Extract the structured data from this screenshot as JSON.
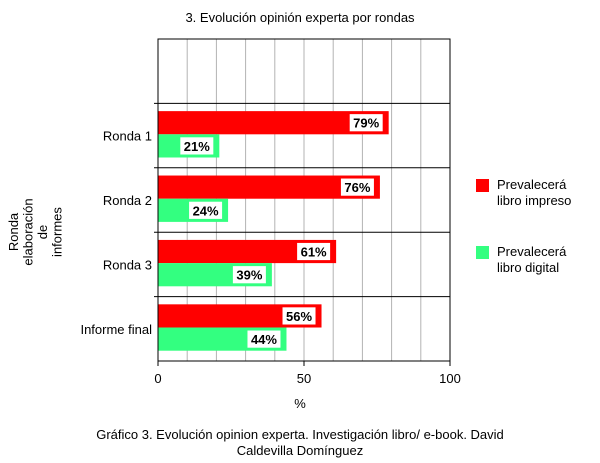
{
  "chart_data": {
    "type": "bar",
    "orientation": "horizontal",
    "title": "3. Evolución opinión experta por rondas",
    "categories": [
      "Ronda 1",
      "Ronda 2",
      "Ronda 3",
      "Informe final"
    ],
    "series": [
      {
        "name": "Prevalecerá libro impreso",
        "values": [
          79,
          76,
          61,
          56
        ],
        "color": "#ff0000"
      },
      {
        "name": "Prevalecerá libro digital",
        "values": [
          21,
          24,
          39,
          44
        ],
        "color": "#33ff80"
      }
    ],
    "data_labels": [
      [
        "79%",
        "76%",
        "61%",
        "56%"
      ],
      [
        "21%",
        "24%",
        "39%",
        "44%"
      ]
    ],
    "xlabel": "%",
    "ylabel": [
      "Ronda",
      "elaboración",
      "de",
      "informes"
    ],
    "xlim": [
      0,
      100
    ],
    "xticks": [
      0,
      50,
      100
    ],
    "grid": true,
    "legend_position": "right"
  },
  "legend": {
    "items": [
      {
        "text": "Prevalecerá libro impreso",
        "color": "#ff0000"
      },
      {
        "text": "Prevalecerá libro digital",
        "color": "#33ff80"
      }
    ]
  },
  "caption": {
    "line1": "Gráfico 3. Evolución opinion experta. Investigación libro/ e-book. David",
    "line2": "Caldevilla Domínguez"
  }
}
